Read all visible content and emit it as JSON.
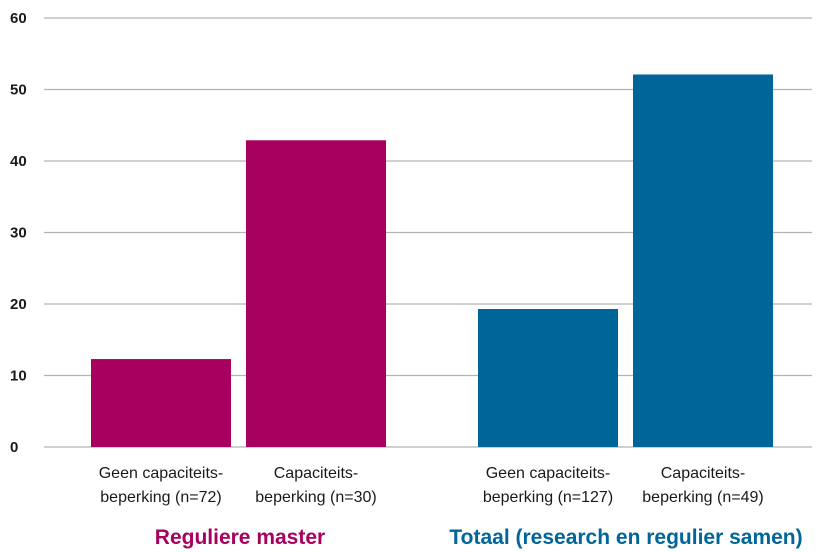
{
  "chart_data": {
    "type": "bar",
    "ylim": [
      0,
      60
    ],
    "yticks": [
      0,
      10,
      20,
      30,
      40,
      50,
      60
    ],
    "grid": true,
    "groups": [
      {
        "label": "Reguliere master",
        "color": "#A8005F",
        "bars": [
          {
            "label_lines": [
              "Geen capaciteits-",
              "beperking (n=72)"
            ],
            "value": 12.3
          },
          {
            "label_lines": [
              "Capaciteits-",
              "beperking (n=30)"
            ],
            "value": 42.9
          }
        ]
      },
      {
        "label": "Totaal (research en regulier samen)",
        "color": "#006699",
        "bars": [
          {
            "label_lines": [
              "Geen capaciteits-",
              "beperking (n=127)"
            ],
            "value": 19.3
          },
          {
            "label_lines": [
              "Capaciteits-",
              "beperking (n=49)"
            ],
            "value": 52.1
          }
        ]
      }
    ]
  }
}
